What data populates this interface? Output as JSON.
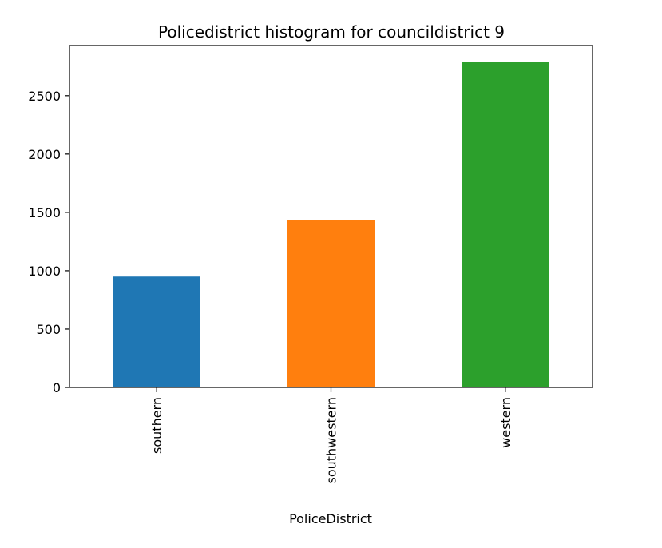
{
  "chart_data": {
    "type": "bar",
    "title": "Policedistrict histogram for councildistrict 9",
    "xlabel": "PoliceDistrict",
    "ylabel": "",
    "categories": [
      "southern",
      "southwestern",
      "western"
    ],
    "values": [
      950,
      1435,
      2790
    ],
    "colors": [
      "#1f77b4",
      "#ff7f0e",
      "#2ca02c"
    ],
    "ylim": [
      0,
      2930
    ],
    "yticks": [
      0,
      500,
      1000,
      1500,
      2000,
      2500
    ],
    "yticklabels": [
      "0",
      "500",
      "1000",
      "1500",
      "2000",
      "2500"
    ],
    "grid": false,
    "legend": "none"
  }
}
